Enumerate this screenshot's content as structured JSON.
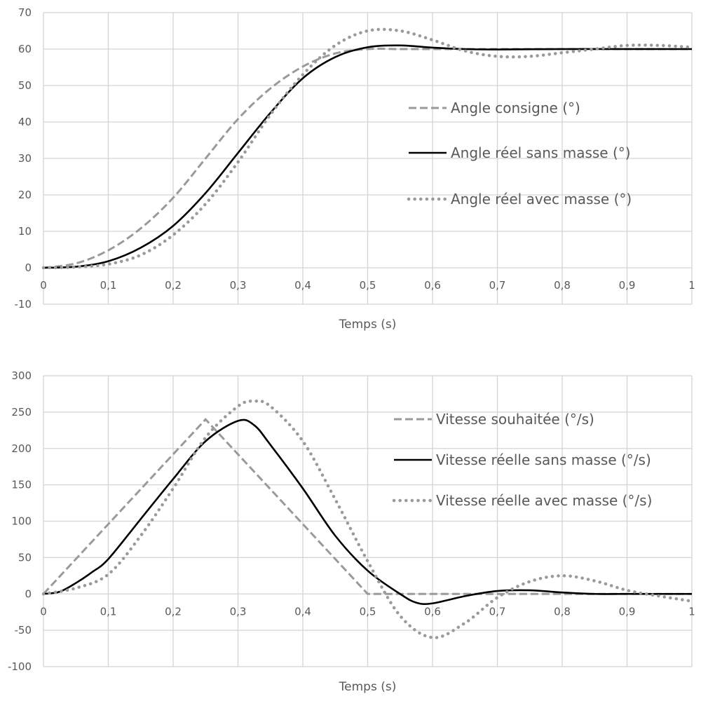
{
  "chart_data": [
    {
      "type": "line",
      "xlabel": "Temps (s)",
      "ylabel": "",
      "xlim": [
        0,
        1
      ],
      "ylim": [
        -10,
        70
      ],
      "x_ticks": [
        0,
        0.1,
        0.2,
        0.3,
        0.4,
        0.5,
        0.6,
        0.7,
        0.8,
        0.9,
        1
      ],
      "x_tick_labels": [
        "0",
        "0,1",
        "0,2",
        "0,3",
        "0,4",
        "0,5",
        "0,6",
        "0,7",
        "0,8",
        "0,9",
        "1"
      ],
      "y_ticks": [
        -10,
        0,
        10,
        20,
        30,
        40,
        50,
        60,
        70
      ],
      "y_tick_labels": [
        "-10",
        "0",
        "10",
        "20",
        "30",
        "40",
        "50",
        "60",
        "70"
      ],
      "grid": true,
      "legend_position": "right",
      "series": [
        {
          "name": "Angle consigne (°)",
          "style": "dashed",
          "color": "#9a9a9a",
          "x": [
            0,
            0.05,
            0.1,
            0.15,
            0.2,
            0.25,
            0.3,
            0.35,
            0.4,
            0.45,
            0.5,
            0.55,
            0.6,
            0.7,
            0.8,
            0.9,
            1
          ],
          "y": [
            0,
            1.2,
            4.8,
            10.8,
            19.2,
            30,
            40.8,
            49.2,
            55.2,
            58.8,
            60,
            60,
            60,
            60,
            60,
            60,
            60
          ]
        },
        {
          "name": "Angle réel sans masse (°)",
          "style": "solid",
          "color": "#000000",
          "x": [
            0,
            0.05,
            0.1,
            0.15,
            0.2,
            0.25,
            0.3,
            0.35,
            0.4,
            0.45,
            0.5,
            0.55,
            0.6,
            0.65,
            0.7,
            0.8,
            0.9,
            1
          ],
          "y": [
            0,
            0.3,
            1.8,
            5.5,
            11.5,
            20.5,
            31.5,
            42.5,
            52,
            57.8,
            60.5,
            61,
            60.4,
            60,
            59.9,
            60,
            60,
            60
          ]
        },
        {
          "name": "Angle réel avec masse (°)",
          "style": "dotted",
          "color": "#9a9a9a",
          "x": [
            0,
            0.05,
            0.1,
            0.15,
            0.2,
            0.25,
            0.3,
            0.35,
            0.4,
            0.45,
            0.5,
            0.55,
            0.6,
            0.65,
            0.7,
            0.75,
            0.8,
            0.85,
            0.9,
            0.95,
            1
          ],
          "y": [
            0,
            0.2,
            1,
            3.5,
            9,
            17.5,
            29,
            42,
            53,
            61,
            65,
            65,
            62.5,
            59.5,
            58,
            58,
            59,
            60,
            61,
            61,
            60.5
          ]
        }
      ]
    },
    {
      "type": "line",
      "xlabel": "Temps (s)",
      "ylabel": "",
      "xlim": [
        0,
        1
      ],
      "ylim": [
        -100,
        300
      ],
      "x_ticks": [
        0,
        0.1,
        0.2,
        0.3,
        0.4,
        0.5,
        0.6,
        0.7,
        0.8,
        0.9,
        1
      ],
      "x_tick_labels": [
        "0",
        "0,1",
        "0,2",
        "0,3",
        "0,4",
        "0,5",
        "0,6",
        "0,7",
        "0,8",
        "0,9",
        "1"
      ],
      "y_ticks": [
        -100,
        -50,
        0,
        50,
        100,
        150,
        200,
        250,
        300
      ],
      "y_tick_labels": [
        "-100",
        "-50",
        "0",
        "50",
        "100",
        "150",
        "200",
        "250",
        "300"
      ],
      "grid": true,
      "legend_position": "right",
      "series": [
        {
          "name": "Vitesse souhaitée (°/s)",
          "style": "dashed",
          "color": "#9a9a9a",
          "x": [
            0,
            0.25,
            0.5,
            0.55,
            0.6,
            0.7,
            0.8,
            0.9,
            1
          ],
          "y": [
            0,
            240,
            0,
            0,
            0,
            0,
            0,
            0,
            0
          ]
        },
        {
          "name": "Vitesse réelle sans masse (°/s)",
          "style": "solid",
          "color": "#000000",
          "x": [
            0,
            0.025,
            0.05,
            0.075,
            0.1,
            0.15,
            0.2,
            0.25,
            0.3,
            0.325,
            0.35,
            0.4,
            0.45,
            0.5,
            0.55,
            0.575,
            0.6,
            0.65,
            0.7,
            0.75,
            0.8,
            0.85,
            0.9,
            0.95,
            1
          ],
          "y": [
            0,
            3,
            15,
            30,
            48,
            103,
            158,
            210,
            238,
            232,
            205,
            145,
            80,
            32,
            0,
            -12,
            -13,
            -3,
            4,
            5,
            2,
            0,
            0,
            0,
            0
          ]
        },
        {
          "name": "Vitesse réelle avec masse (°/s)",
          "style": "dotted",
          "color": "#9a9a9a",
          "x": [
            0,
            0.05,
            0.1,
            0.15,
            0.2,
            0.25,
            0.3,
            0.325,
            0.35,
            0.4,
            0.45,
            0.5,
            0.55,
            0.6,
            0.65,
            0.7,
            0.75,
            0.8,
            0.85,
            0.9,
            0.95,
            1
          ],
          "y": [
            0,
            8,
            27,
            80,
            145,
            215,
            258,
            265,
            258,
            210,
            130,
            45,
            -30,
            -60,
            -40,
            -5,
            17,
            25,
            18,
            5,
            -3,
            -10
          ]
        }
      ]
    }
  ]
}
